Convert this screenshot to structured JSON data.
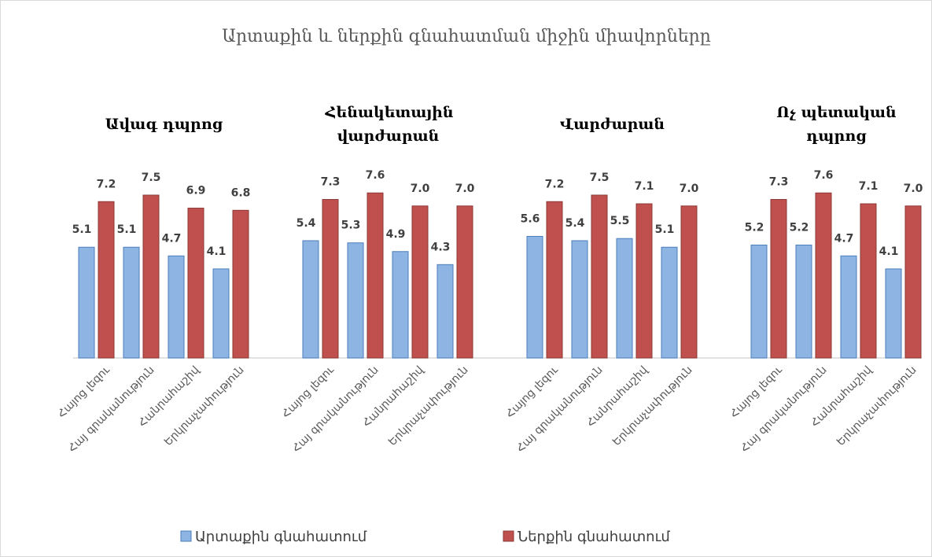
{
  "chart_data": {
    "type": "bar",
    "title": "Արտաքին և ներքին գնահատման միջին միավորները",
    "groups": [
      "Ավագ դպրոց",
      "Հենակետային վարժարան",
      "Վարժարան",
      "Ոչ պետական դպրոց"
    ],
    "categories": [
      "Հայոց լեզու",
      "Հայ գրականություն",
      "Հանրահաշիվ",
      "Երկրաչափություն",
      "Հայոց լեզու",
      "Հայ գրականություն",
      "Հանրահաշիվ",
      "Երկրաչափություն",
      "Հայոց լեզու",
      "Հայ գրականություն",
      "Հանրահաշիվ",
      "Երկրաչափություն",
      "Հայոց լեզու",
      "Հայ գրականություն",
      "Հանրահաշիվ",
      "Երկրաչափություն"
    ],
    "series": [
      {
        "name": "Արտաքին գնահատում",
        "color": "#8eb4e3",
        "values": [
          5.1,
          5.1,
          4.7,
          4.1,
          5.4,
          5.3,
          4.9,
          4.3,
          5.6,
          5.4,
          5.5,
          5.1,
          5.2,
          5.2,
          4.7,
          4.1
        ]
      },
      {
        "name": "Ներքին գնահատում",
        "color": "#c0504d",
        "values": [
          7.2,
          7.5,
          6.9,
          6.8,
          7.3,
          7.6,
          7,
          7,
          7.2,
          7.5,
          7.1,
          7,
          7.3,
          7.6,
          7.1,
          7
        ],
        "value_labels": [
          "7.2",
          "7.5",
          "6.9",
          "6.8",
          "7.3",
          "7.6",
          "7.0",
          "7.0",
          "7.2",
          "7.5",
          "7.1",
          "7.0",
          "7.3",
          "7.6",
          "7.1",
          "7.0"
        ]
      }
    ],
    "legend": "bottom"
  }
}
